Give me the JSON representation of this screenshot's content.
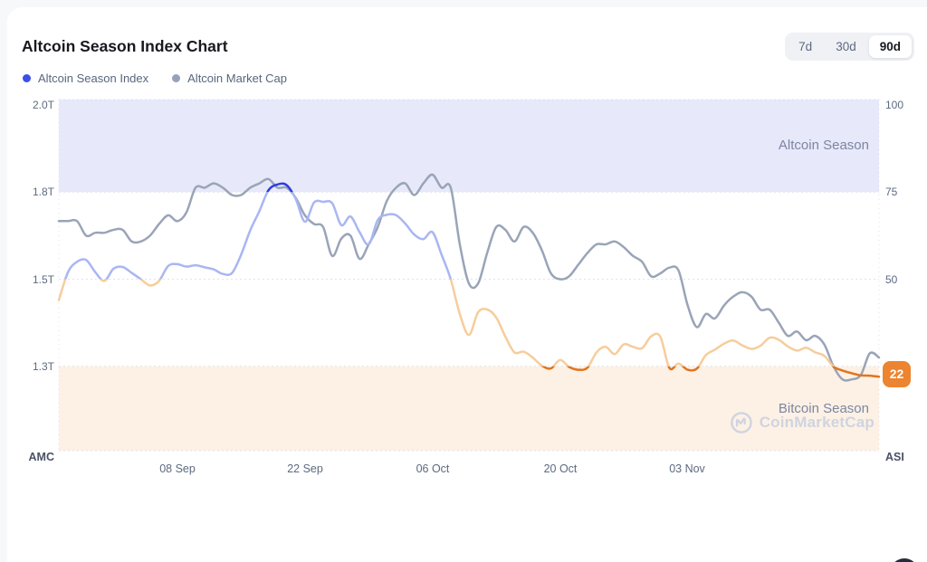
{
  "header": {
    "title": "Altcoin Season Index Chart",
    "range_buttons": [
      {
        "label": "7d",
        "active": false
      },
      {
        "label": "30d",
        "active": false
      },
      {
        "label": "90d",
        "active": true
      }
    ]
  },
  "legend": {
    "items": [
      {
        "label": "Altcoin Season Index",
        "color": "#3d4eea"
      },
      {
        "label": "Altcoin Market Cap",
        "color": "#97a2ba"
      }
    ]
  },
  "chart_data": {
    "type": "line",
    "x": {
      "ticks": [
        {
          "label": "08 Sep",
          "day": 13
        },
        {
          "label": "22 Sep",
          "day": 27
        },
        {
          "label": "06 Oct",
          "day": 41
        },
        {
          "label": "20 Oct",
          "day": 55
        },
        {
          "label": "03 Nov",
          "day": 69
        }
      ],
      "days_total": 90
    },
    "y_left_axis": {
      "name": "AMC",
      "ticks": [
        {
          "label": "2.0T",
          "pos": 100
        },
        {
          "label": "1.8T",
          "pos": 75
        },
        {
          "label": "1.5T",
          "pos": 50
        },
        {
          "label": "1.3T",
          "pos": 25
        }
      ],
      "scale_stops": [
        [
          2.0,
          100
        ],
        [
          1.8,
          75
        ],
        [
          1.5,
          50
        ],
        [
          1.3,
          25
        ],
        [
          1.1,
          0
        ]
      ]
    },
    "y_right_axis": {
      "name": "ASI",
      "range": [
        0,
        100
      ],
      "ticks": [
        {
          "label": "100",
          "pos": 100
        },
        {
          "label": "75",
          "pos": 75
        },
        {
          "label": "50",
          "pos": 50
        }
      ]
    },
    "zones": {
      "altcoin_season": {
        "label": "Altcoin Season",
        "from": 75,
        "to": 100,
        "color": "#e7e9fa"
      },
      "bitcoin_season": {
        "label": "Bitcoin Season",
        "from": 0,
        "to": 25,
        "color": "#fdf1e5"
      }
    },
    "grid": {
      "color": "#dfe3ec",
      "style": "dotted"
    },
    "series": [
      {
        "name": "Altcoin Season Index",
        "axis": "right",
        "zone_colors": {
          "above_75": "#2c3ee0",
          "50_75": "#a9b6f2",
          "25_50": "#f6cd9c",
          "below_25": "#e0751f"
        },
        "values": [
          44,
          52,
          55,
          55.5,
          52,
          49.5,
          53,
          53.5,
          51.8,
          50,
          48.2,
          49.5,
          53.8,
          54.3,
          53.6,
          54,
          53.4,
          52.8,
          51.5,
          51.8,
          57,
          64,
          69.5,
          75.5,
          77.2,
          77,
          73,
          66.5,
          72,
          72.2,
          71.8,
          65.5,
          68,
          63.5,
          60,
          67,
          68.5,
          68.4,
          66,
          62.8,
          61.5,
          63.5,
          57,
          50,
          40,
          34,
          40.5,
          41.3,
          39,
          33.5,
          29,
          29.2,
          27.5,
          25.2,
          24.4,
          26.8,
          24.8,
          24,
          24.6,
          29,
          30.6,
          28.5,
          31.3,
          30.6,
          30.2,
          33.6,
          33.5,
          24.5,
          25.8,
          24,
          24.3,
          28.2,
          29.8,
          31.5,
          32.4,
          31,
          30,
          30.9,
          33.2,
          32.6,
          30.7,
          29.5,
          30.3,
          29,
          28,
          24.9,
          23.8,
          23,
          22.4,
          22.3,
          22
        ]
      },
      {
        "name": "Altcoin Market Cap",
        "axis": "left",
        "color": "#9aa4b8",
        "values_trillions": [
          1.7,
          1.7,
          1.7,
          1.65,
          1.66,
          1.66,
          1.67,
          1.67,
          1.63,
          1.63,
          1.65,
          1.69,
          1.72,
          1.7,
          1.73,
          1.81,
          1.81,
          1.82,
          1.81,
          1.79,
          1.79,
          1.81,
          1.82,
          1.83,
          1.81,
          1.81,
          1.78,
          1.72,
          1.69,
          1.68,
          1.58,
          1.64,
          1.65,
          1.57,
          1.62,
          1.68,
          1.77,
          1.81,
          1.82,
          1.79,
          1.82,
          1.84,
          1.81,
          1.81,
          1.62,
          1.49,
          1.49,
          1.59,
          1.68,
          1.67,
          1.63,
          1.68,
          1.66,
          1.6,
          1.52,
          1.5,
          1.51,
          1.55,
          1.59,
          1.62,
          1.62,
          1.63,
          1.61,
          1.58,
          1.56,
          1.51,
          1.52,
          1.54,
          1.53,
          1.44,
          1.39,
          1.42,
          1.41,
          1.44,
          1.46,
          1.47,
          1.46,
          1.43,
          1.43,
          1.4,
          1.37,
          1.38,
          1.36,
          1.37,
          1.35,
          1.3,
          1.27,
          1.27,
          1.28,
          1.33,
          1.32
        ]
      }
    ],
    "current_value_badge": {
      "value": "22",
      "color": "#ec8430"
    },
    "watermark": {
      "text": "CoinMarketCap"
    }
  }
}
